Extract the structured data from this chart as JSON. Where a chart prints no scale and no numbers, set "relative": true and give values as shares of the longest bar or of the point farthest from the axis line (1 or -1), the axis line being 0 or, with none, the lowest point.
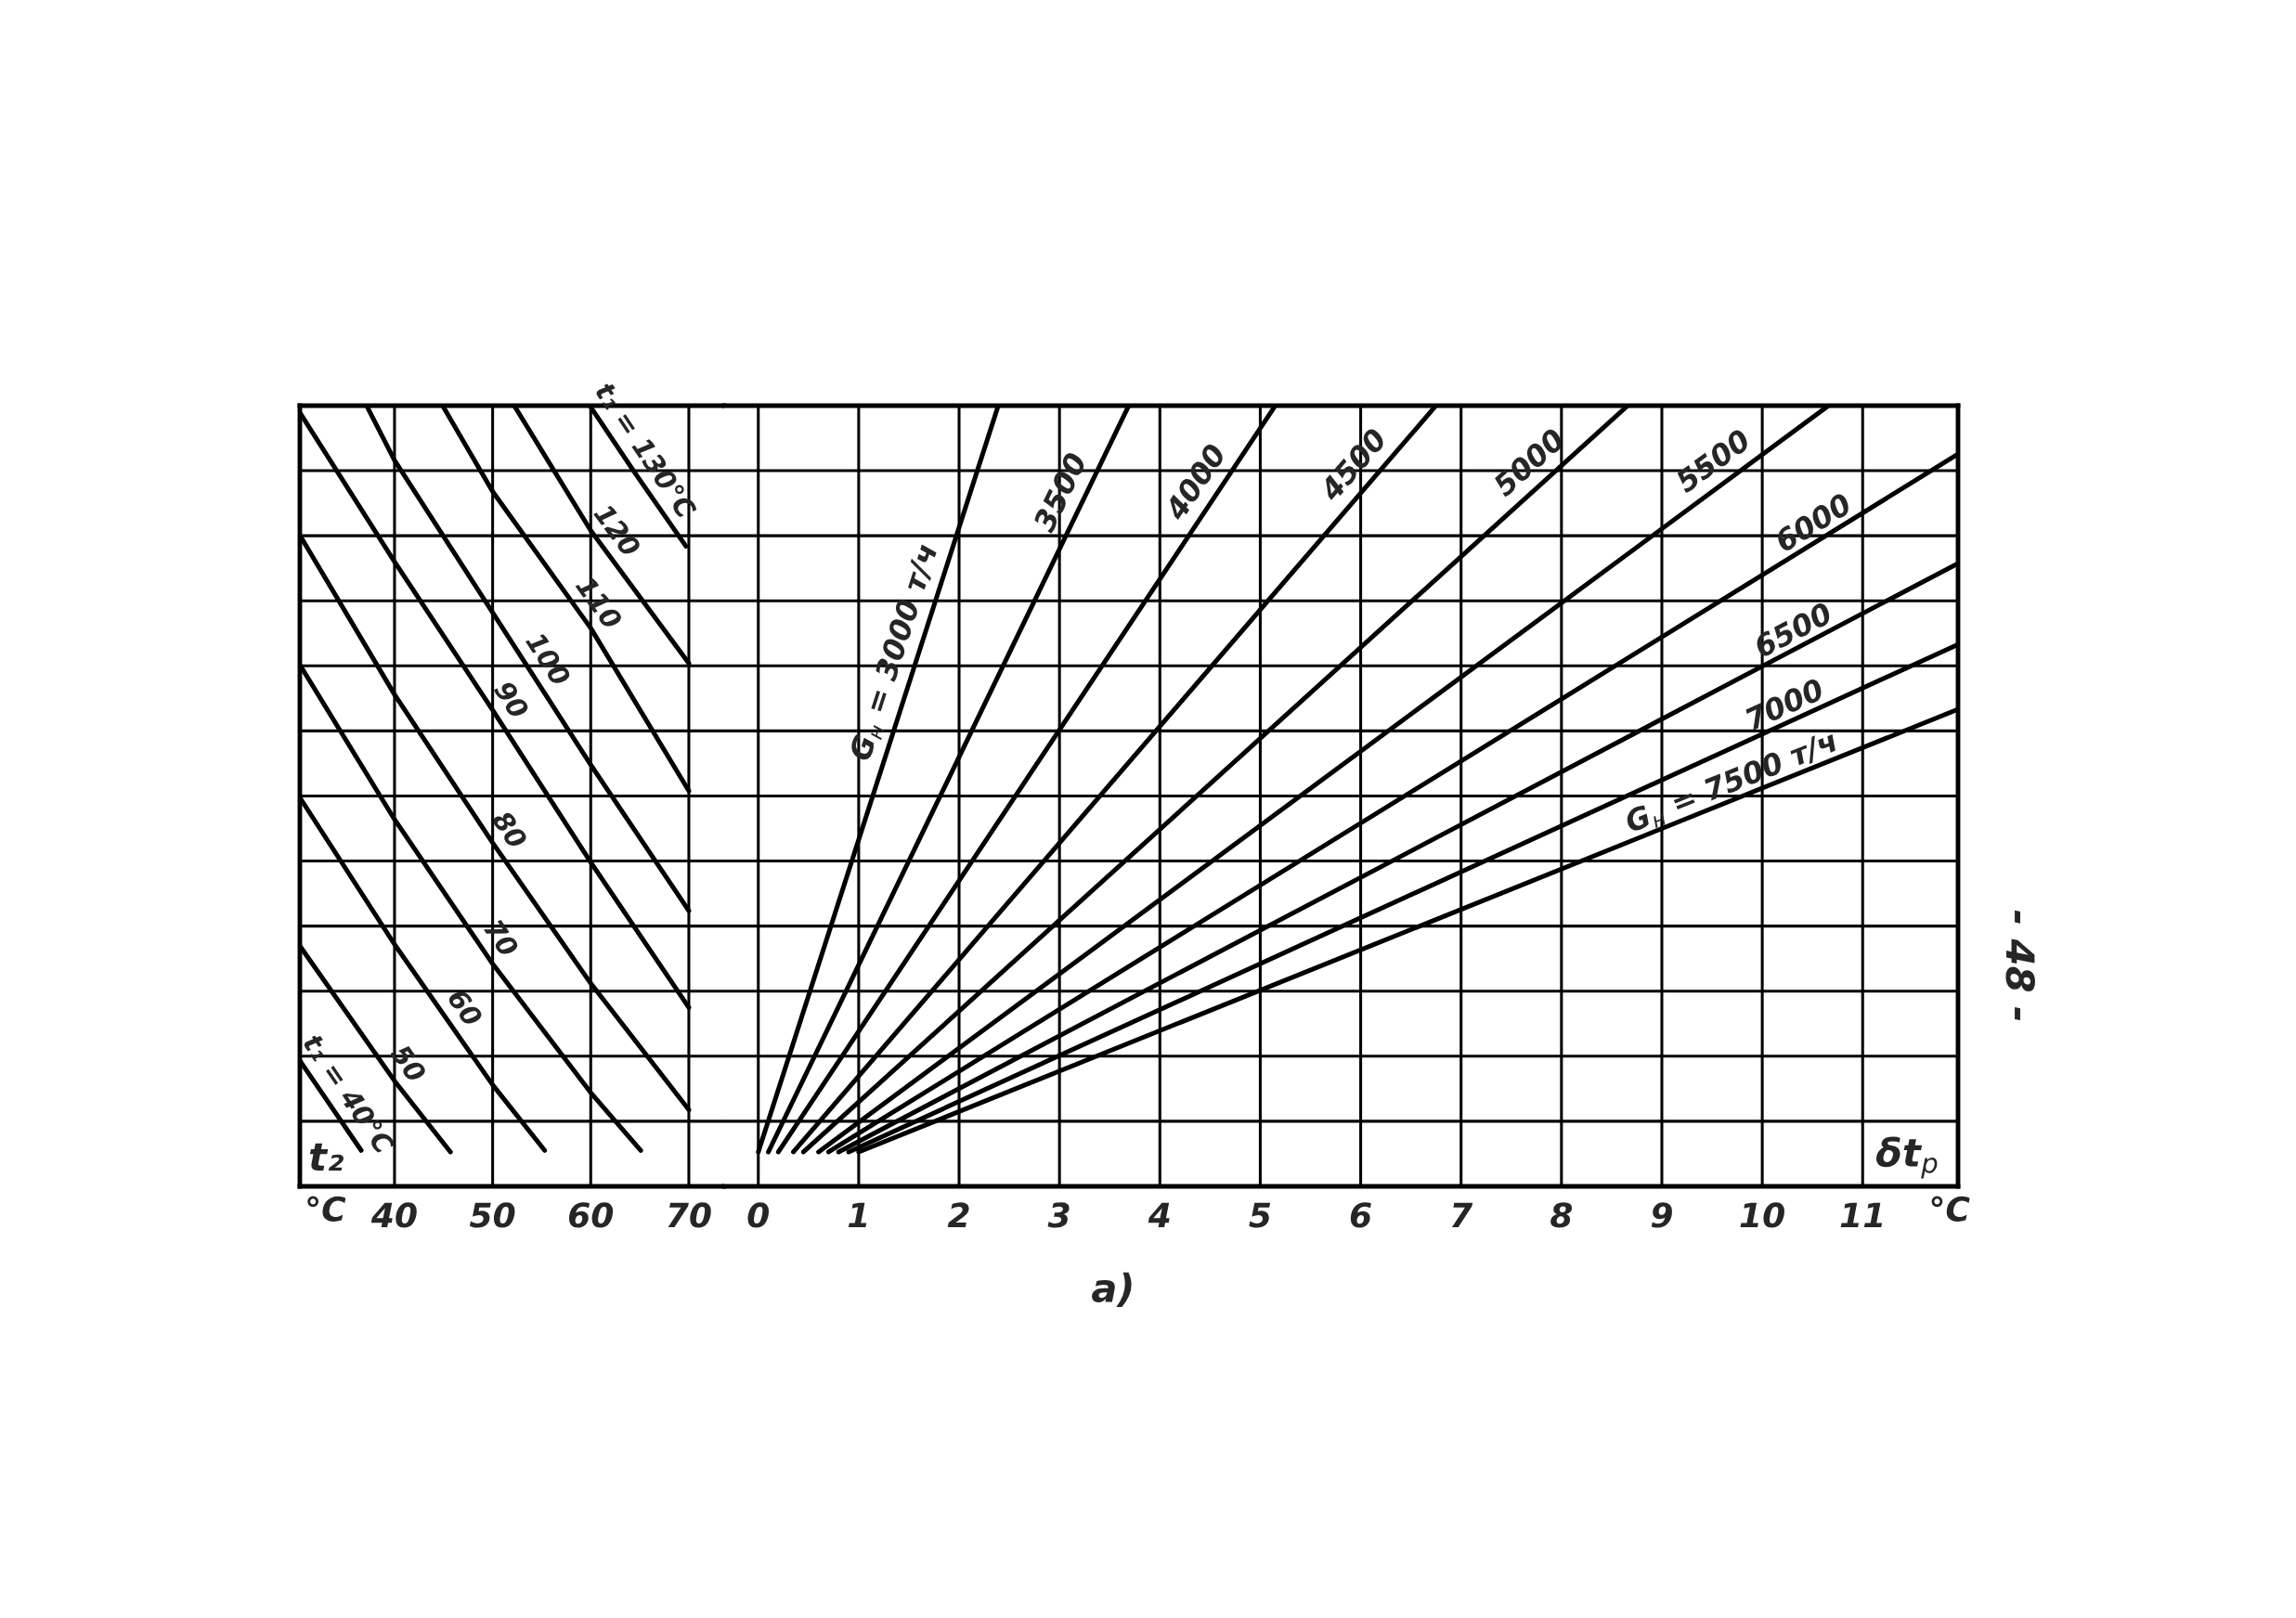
{
  "chart_data": [
    {
      "type": "line",
      "relative": true,
      "xlabel": "°C",
      "xlim": [
        30.35,
        73.6
      ],
      "xticks": [
        40,
        50,
        60,
        70
      ],
      "grid": true,
      "tick_labels": "x",
      "annotations": [
        "t₂"
      ],
      "series": [
        {
          "name": "t₁ = 40°C",
          "color": "#000000",
          "x": [
            30.4,
            36.6
          ],
          "values": [
            0.16,
            0.046
          ]
        },
        {
          "name": "50",
          "color": "#000000",
          "x": [
            30.4,
            40,
            45.7
          ],
          "values": [
            0.307,
            0.135,
            0.044
          ]
        },
        {
          "name": "60",
          "color": "#000000",
          "x": [
            30.4,
            40,
            50,
            55.3
          ],
          "values": [
            0.497,
            0.31,
            0.13,
            0.046
          ]
        },
        {
          "name": "70",
          "color": "#000000",
          "x": [
            30.4,
            40,
            50,
            60,
            65.1
          ],
          "values": [
            0.667,
            0.47,
            0.285,
            0.12,
            0.046
          ]
        },
        {
          "name": "80",
          "color": "#000000",
          "x": [
            30.4,
            40,
            50,
            60,
            70
          ],
          "values": [
            0.833,
            0.63,
            0.44,
            0.26,
            0.098
          ]
        },
        {
          "name": "90",
          "color": "#000000",
          "x": [
            30.4,
            40,
            50,
            60,
            70
          ],
          "values": [
            0.99,
            0.8,
            0.61,
            0.415,
            0.229
          ]
        },
        {
          "name": "100",
          "color": "#000000",
          "x": [
            37.15,
            40,
            50,
            60,
            70
          ],
          "values": [
            1.0,
            0.93,
            0.735,
            0.54,
            0.353
          ]
        },
        {
          "name": "110",
          "color": "#000000",
          "x": [
            44.9,
            50,
            60,
            70
          ],
          "values": [
            1.0,
            0.89,
            0.715,
            0.5065
          ]
        },
        {
          "name": "120",
          "color": "#000000",
          "x": [
            52.2,
            60,
            70
          ],
          "values": [
            1.0,
            0.84,
            0.67
          ]
        },
        {
          "name": "t₁ = 130°C",
          "color": "#000000",
          "x": [
            59.9,
            64.6,
            69.7
          ],
          "values": [
            1.0,
            0.912,
            0.82
          ]
        }
      ]
    },
    {
      "type": "line",
      "relative": true,
      "xlabel": "°C",
      "xlim": [
        -0.34,
        11.95
      ],
      "xticks": [
        0,
        1,
        2,
        3,
        4,
        5,
        6,
        7,
        8,
        9,
        10,
        11
      ],
      "grid": true,
      "tick_labels": "x",
      "annotations": [
        "δt$_{р}$",
        "а)",
        "- 48 -"
      ],
      "series": [
        {
          "name": "G$_{н}$ = 3000 т/ч",
          "color": "#000000",
          "x": [
            0.0,
            2.39
          ],
          "values": [
            0.044,
            1.0
          ]
        },
        {
          "name": "3500",
          "color": "#000000",
          "x": [
            0.1,
            3.69
          ],
          "values": [
            0.044,
            1.0
          ]
        },
        {
          "name": "4000",
          "color": "#000000",
          "x": [
            0.2,
            5.15
          ],
          "values": [
            0.044,
            1.0
          ]
        },
        {
          "name": "4500",
          "color": "#000000",
          "x": [
            0.35,
            6.75
          ],
          "values": [
            0.044,
            1.0
          ]
        },
        {
          "name": "5000",
          "color": "#000000",
          "x": [
            0.45,
            8.66
          ],
          "values": [
            0.044,
            1.0
          ]
        },
        {
          "name": "5500",
          "color": "#000000",
          "x": [
            0.6,
            10.66
          ],
          "values": [
            0.044,
            1.0
          ]
        },
        {
          "name": "6000",
          "color": "#000000",
          "x": [
            0.7,
            11.95
          ],
          "values": [
            0.044,
            0.938
          ]
        },
        {
          "name": "6500",
          "color": "#000000",
          "x": [
            0.8,
            11.95
          ],
          "values": [
            0.044,
            0.798
          ]
        },
        {
          "name": "7000",
          "color": "#000000",
          "x": [
            0.9,
            11.95
          ],
          "values": [
            0.044,
            0.694
          ]
        },
        {
          "name": "G$_{н}$ = 7500 т/ч",
          "color": "#000000",
          "x": [
            1.0,
            11.95
          ],
          "values": [
            0.044,
            0.611
          ]
        }
      ]
    }
  ]
}
